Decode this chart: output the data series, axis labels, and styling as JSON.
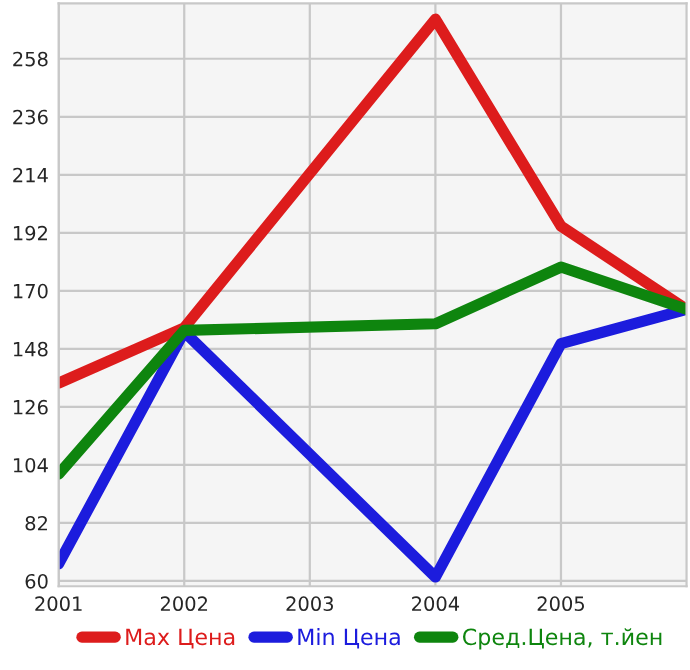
{
  "chart_data": {
    "type": "line",
    "x": [
      2001,
      2002,
      2004,
      2005,
      2006
    ],
    "series": [
      {
        "name": "Max Цена",
        "color": "#dd1c1c",
        "values": [
          135,
          156,
          273,
          194.5,
          163
        ]
      },
      {
        "name": "Min Цена",
        "color": "#1c1cdd",
        "values": [
          66.5,
          154.5,
          61.5,
          150,
          163
        ]
      },
      {
        "name": "Сред.Цена, т.йен",
        "color": "#0e850e",
        "values": [
          100.5,
          155,
          157.5,
          179,
          163
        ]
      }
    ],
    "xlim": [
      2001,
      2006
    ],
    "xticks": [
      2001,
      2002,
      2003,
      2004,
      2005
    ],
    "ylim": [
      58,
      279
    ],
    "yticks": [
      60,
      82,
      104,
      126,
      148,
      170,
      192,
      214,
      236,
      258
    ],
    "grid": true,
    "legend": "bottom",
    "marker": "none",
    "line_style": "solid"
  }
}
